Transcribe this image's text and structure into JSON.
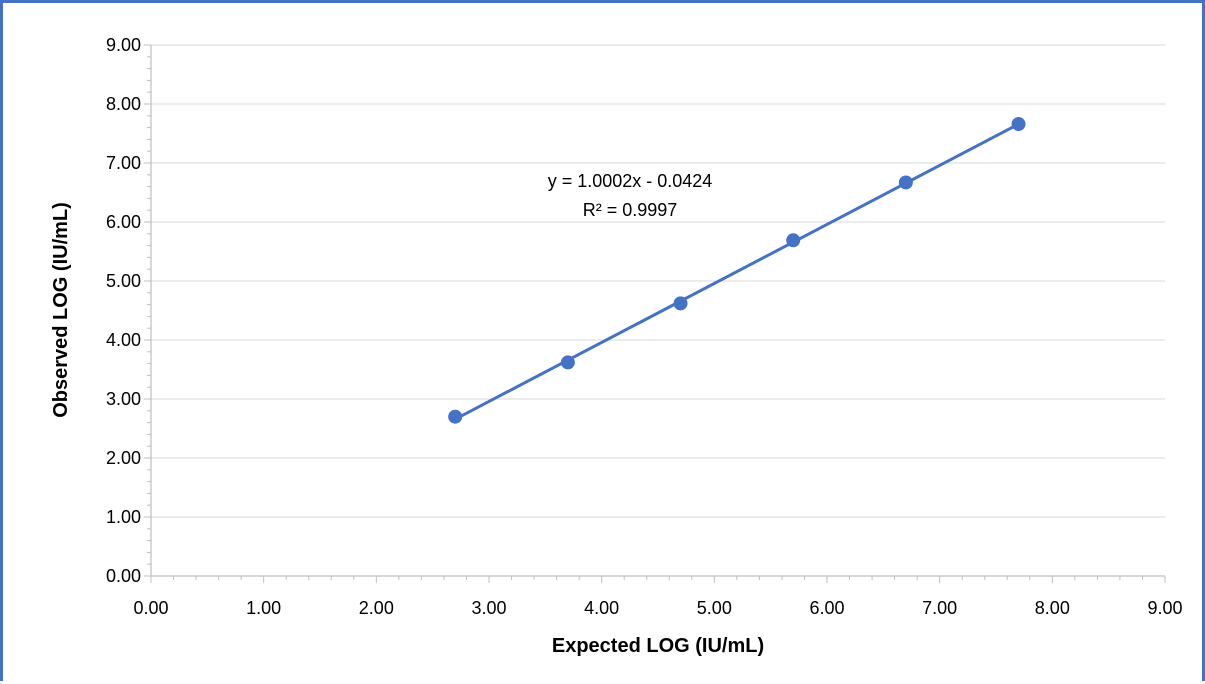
{
  "chart_data": {
    "type": "scatter",
    "xlabel": "Expected LOG (IU/mL)",
    "ylabel": "Observed LOG (IU/mL)",
    "xlim": [
      0,
      9
    ],
    "ylim": [
      0,
      9
    ],
    "x_ticks": [
      "0.00",
      "1.00",
      "2.00",
      "3.00",
      "4.00",
      "5.00",
      "6.00",
      "7.00",
      "8.00",
      "9.00"
    ],
    "y_ticks": [
      "0.00",
      "1.00",
      "2.00",
      "3.00",
      "4.00",
      "5.00",
      "6.00",
      "7.00",
      "8.00",
      "9.00"
    ],
    "grid": "horizontal",
    "series": [
      {
        "x": [
          2.7,
          3.7,
          4.7,
          5.7,
          6.7,
          7.7
        ],
        "y": [
          2.7,
          3.62,
          4.62,
          5.69,
          6.67,
          7.66
        ],
        "color": "#4472C4"
      }
    ],
    "trendline": {
      "type": "linear",
      "slope": 1.0002,
      "intercept": -0.0424,
      "x_range": [
        2.7,
        7.7
      ],
      "equation": "y = 1.0002x - 0.0424",
      "r_squared": "R² = 0.9997"
    }
  }
}
